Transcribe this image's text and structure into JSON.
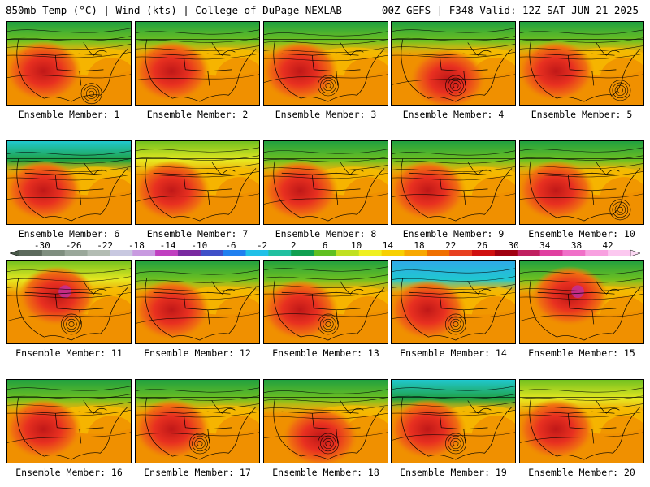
{
  "header": {
    "left": "850mb Temp (°C) | Wind (kts) | College of DuPage NEXLAB",
    "right": "00Z GEFS | F348 Valid: 12Z SAT JUN 21 2025"
  },
  "panel_caption_prefix": "Ensemble Member: ",
  "members": [
    {
      "label": "Ensemble Member: 1",
      "north": "green",
      "hot_core": "southwest",
      "low": "gulf"
    },
    {
      "label": "Ensemble Member: 2",
      "north": "green",
      "hot_core": "southwest",
      "low": "none"
    },
    {
      "label": "Ensemble Member: 3",
      "north": "green",
      "hot_core": "southwest",
      "low": "south-central"
    },
    {
      "label": "Ensemble Member: 4",
      "north": "green",
      "hot_core": "south-central",
      "low": "south-central"
    },
    {
      "label": "Ensemble Member: 5",
      "north": "green",
      "hot_core": "southwest",
      "low": "southeast"
    },
    {
      "label": "Ensemble Member: 6",
      "north": "green-blue",
      "hot_core": "southwest",
      "low": "none"
    },
    {
      "label": "Ensemble Member: 7",
      "north": "yellow",
      "hot_core": "southwest",
      "low": "none"
    },
    {
      "label": "Ensemble Member: 8",
      "north": "green",
      "hot_core": "southwest",
      "low": "none"
    },
    {
      "label": "Ensemble Member: 9",
      "north": "green",
      "hot_core": "southwest",
      "low": "none"
    },
    {
      "label": "Ensemble Member: 10",
      "north": "green",
      "hot_core": "southwest",
      "low": "southeast"
    },
    {
      "label": "Ensemble Member: 11",
      "north": "yellow",
      "hot_core": "central",
      "low": "south-central"
    },
    {
      "label": "Ensemble Member: 12",
      "north": "green",
      "hot_core": "southwest",
      "low": "none"
    },
    {
      "label": "Ensemble Member: 13",
      "north": "green",
      "hot_core": "southwest",
      "low": "south-central"
    },
    {
      "label": "Ensemble Member: 14",
      "north": "blue",
      "hot_core": "southwest",
      "low": "south-central"
    },
    {
      "label": "Ensemble Member: 15",
      "north": "green",
      "hot_core": "central",
      "low": "none"
    },
    {
      "label": "Ensemble Member: 16",
      "north": "green",
      "hot_core": "southwest",
      "low": "none"
    },
    {
      "label": "Ensemble Member: 17",
      "north": "green",
      "hot_core": "southwest",
      "low": "south-central"
    },
    {
      "label": "Ensemble Member: 18",
      "north": "green",
      "hot_core": "south-central",
      "low": "south-central"
    },
    {
      "label": "Ensemble Member: 19",
      "north": "green-blue",
      "hot_core": "southwest",
      "low": "south-central"
    },
    {
      "label": "Ensemble Member: 20",
      "north": "yellow",
      "hot_core": "southwest",
      "low": "none"
    }
  ],
  "colorbar": {
    "ticks": [
      "-30",
      "-26",
      "-22",
      "-18",
      "-14",
      "-10",
      "-6",
      "-2",
      "2",
      "6",
      "10",
      "14",
      "18",
      "22",
      "26",
      "30",
      "34",
      "38",
      "42"
    ],
    "colors": [
      "#5d6b5d",
      "#7f8f7f",
      "#9aa89a",
      "#b3bdb3",
      "#c8c8e0",
      "#c89ae0",
      "#c040c0",
      "#7a2aa0",
      "#4050c8",
      "#2080f0",
      "#20c0e8",
      "#20c0a0",
      "#10a050",
      "#60c020",
      "#c0e020",
      "#f0f020",
      "#f8d000",
      "#f8a800",
      "#f07000",
      "#e84020",
      "#d01010",
      "#a00010",
      "#c02060",
      "#e040a0",
      "#f070c8",
      "#f8a0e0",
      "#fcc8f0"
    ]
  },
  "palette": {
    "blue": "#30a8e8",
    "cyan": "#20c8d0",
    "green": "#20a040",
    "light_green": "#70c020",
    "yellow": "#e8e820",
    "light_orange": "#f8c000",
    "orange": "#f09000",
    "dark_orange": "#f07010",
    "red": "#e83020",
    "dark_red": "#c01818",
    "magenta": "#c030a0"
  }
}
